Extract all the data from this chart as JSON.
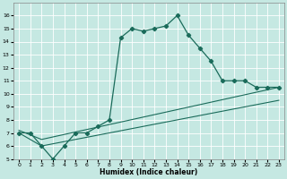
{
  "xlabel": "Humidex (Indice chaleur)",
  "xlim": [
    -0.5,
    23.5
  ],
  "ylim": [
    5,
    17
  ],
  "xticks": [
    0,
    1,
    2,
    3,
    4,
    5,
    6,
    7,
    8,
    9,
    10,
    11,
    12,
    13,
    14,
    15,
    16,
    17,
    18,
    19,
    20,
    21,
    22,
    23
  ],
  "yticks": [
    5,
    6,
    7,
    8,
    9,
    10,
    11,
    12,
    13,
    14,
    15,
    16
  ],
  "bg_color": "#c5e8e2",
  "grid_color": "#ffffff",
  "line_color": "#1a6b5a",
  "line1_x": [
    0,
    1,
    2,
    3,
    4,
    5,
    6,
    7,
    8,
    9,
    10,
    11,
    12,
    13,
    14,
    15,
    16,
    17,
    18,
    19,
    20,
    21,
    22,
    23
  ],
  "line1_y": [
    7.0,
    7.0,
    6.0,
    5.0,
    6.0,
    7.0,
    7.0,
    7.5,
    8.0,
    14.3,
    15.0,
    14.8,
    15.0,
    15.2,
    16.0,
    14.5,
    13.5,
    12.5,
    11.0,
    11.0,
    11.0,
    10.5,
    10.5,
    10.5
  ],
  "line2_x": [
    0,
    2,
    23
  ],
  "line2_y": [
    7.0,
    6.0,
    9.5
  ],
  "line3_x": [
    0,
    2,
    23
  ],
  "line3_y": [
    7.2,
    6.5,
    10.5
  ]
}
